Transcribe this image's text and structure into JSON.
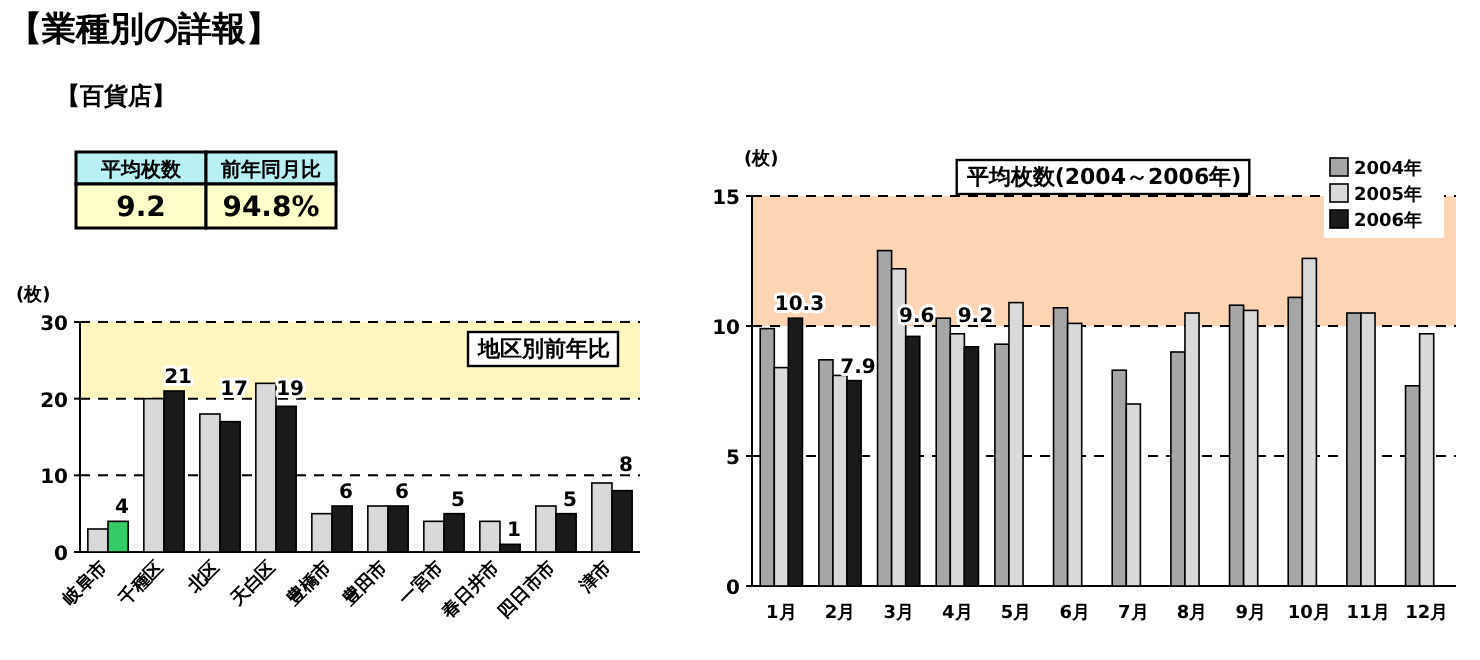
{
  "chart_data": [
    {
      "type": "other",
      "title": "【業種別の詳報】",
      "subtitle": "【百貨店】",
      "categories": [
        "平均枚数",
        "前年同月比"
      ],
      "value_labels": [
        "9.2",
        "94.8%"
      ]
    },
    {
      "type": "bar",
      "title": "地区別前年比",
      "ylabel": "(枚)",
      "categories": [
        "岐阜市",
        "千種区",
        "北区",
        "天白区",
        "豊橋市",
        "豊田市",
        "一宮市",
        "春日井市",
        "四日市市",
        "津市"
      ],
      "series": [
        {
          "color": "#d9d9d9",
          "values": [
            3,
            20,
            18,
            22,
            5,
            6,
            4,
            4,
            6,
            9
          ]
        },
        {
          "color": "#1a1a1a",
          "colors": [
            "#33cc66",
            null,
            null,
            null,
            null,
            null,
            null,
            null,
            null,
            null
          ],
          "values": [
            4,
            21,
            17,
            19,
            6,
            6,
            5,
            1,
            5,
            8
          ],
          "value_labels": [
            "4",
            "21",
            "17",
            "19",
            "6",
            "6",
            "5",
            "1",
            "5",
            "8"
          ]
        }
      ],
      "ylim": [
        0,
        30
      ],
      "yticks": [
        0,
        10,
        20,
        30
      ],
      "grid": "y",
      "legend": false,
      "bands": [
        {
          "axis": "y",
          "from": 20,
          "to": 30,
          "color": "#fff6c0"
        }
      ]
    },
    {
      "type": "bar",
      "title": "平均枚数(2004～2006年)",
      "ylabel": "(枚)",
      "categories": [
        "1月",
        "2月",
        "3月",
        "4月",
        "5月",
        "6月",
        "7月",
        "8月",
        "9月",
        "10月",
        "11月",
        "12月"
      ],
      "series": [
        {
          "name": "2004年",
          "color": "#a6a6a6",
          "values": [
            9.9,
            8.7,
            12.9,
            10.3,
            9.3,
            10.7,
            8.3,
            9.0,
            10.8,
            11.1,
            10.5,
            7.7
          ]
        },
        {
          "name": "2005年",
          "color": "#d9d9d9",
          "values": [
            8.4,
            8.1,
            12.2,
            9.7,
            10.9,
            10.1,
            7.0,
            10.5,
            10.6,
            12.6,
            10.5,
            9.7
          ]
        },
        {
          "name": "2006年",
          "color": "#1a1a1a",
          "values": [
            10.3,
            7.9,
            9.6,
            9.2,
            null,
            null,
            null,
            null,
            null,
            null,
            null,
            null
          ],
          "value_labels": [
            "10.3",
            "7.9",
            "9.6",
            "9.2",
            null,
            null,
            null,
            null,
            null,
            null,
            null,
            null
          ]
        }
      ],
      "ylim": [
        0,
        15
      ],
      "yticks": [
        0,
        5,
        10,
        15
      ],
      "grid": "y",
      "legend": "top right",
      "bands": [
        {
          "axis": "y",
          "from": 10,
          "to": 15,
          "color": "#fcd5b5"
        }
      ]
    }
  ]
}
